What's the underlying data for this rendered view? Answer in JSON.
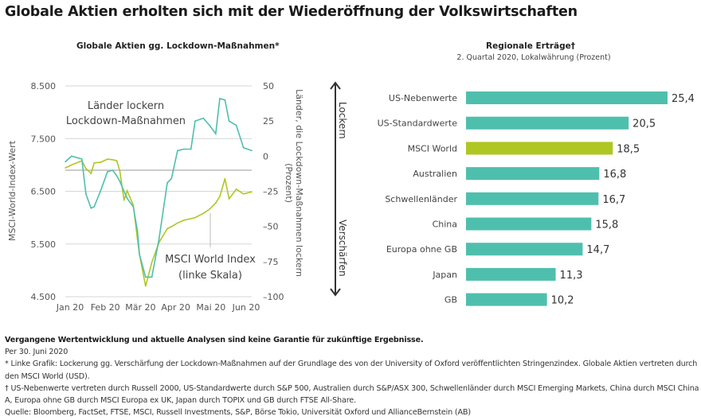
{
  "title": "Globale Aktien erholten sich mit der Wiederöffnung der Volkswirtschaften",
  "colors": {
    "teal": "#4fbfad",
    "green": "#b0c623",
    "grid": "#d6d6d6",
    "text": "#555555"
  },
  "chart_data": [
    {
      "type": "line",
      "title": "Globale Aktien gg. Lockdown-Maßnahmen*",
      "ylabel": "MSCI-World-Index-Wert",
      "y2label": "Länder, die Lockdown-Maßnahmen lockern (Prozent)",
      "ylim": [
        4500,
        8500
      ],
      "y2lim": [
        -100,
        50
      ],
      "yticks": [
        "8.500",
        "7.500",
        "6.500",
        "5.500",
        "4.500"
      ],
      "yticks_values": [
        8500,
        7500,
        6500,
        5500,
        4500
      ],
      "y2ticks": [
        50,
        25,
        0,
        -25,
        -50,
        -75,
        -100
      ],
      "y2ticks_labels": [
        "50",
        "25",
        "0",
        "–25",
        "–50",
        "–75",
        "–100"
      ],
      "xticks": [
        "Jan 20",
        "Feb 20",
        "Mär 20",
        "Apr 20",
        "Mai 20",
        "Jun 20"
      ],
      "xlim": [
        "2020-01-01",
        "2020-06-30"
      ],
      "grid": true,
      "annotations": [
        "Länder lockern",
        "Lockdown-Maßnahmen",
        "MSCI World Index",
        "(linke Skala)"
      ],
      "x": [
        "2020-01-01",
        "2020-01-07",
        "2020-01-17",
        "2020-01-21",
        "2020-01-26",
        "2020-01-29",
        "2020-02-04",
        "2020-02-11",
        "2020-02-16",
        "2020-02-20",
        "2020-02-23",
        "2020-02-27",
        "2020-03-01",
        "2020-03-07",
        "2020-03-11",
        "2020-03-13",
        "2020-03-19",
        "2020-03-25",
        "2020-04-01",
        "2020-04-09",
        "2020-04-13",
        "2020-04-19",
        "2020-04-25",
        "2020-05-02",
        "2020-05-06",
        "2020-05-14",
        "2020-05-20",
        "2020-05-26",
        "2020-05-30",
        "2020-06-04",
        "2020-06-08",
        "2020-06-15",
        "2020-06-22",
        "2020-06-30"
      ],
      "series": [
        {
          "name": "Länder lockern Lockdown-Maßnahmen",
          "axis": "right",
          "color": "#4fbfad",
          "values": [
            -4,
            0,
            -2,
            -27,
            -37,
            -36,
            -25,
            -11,
            -10,
            -14,
            -18,
            -25,
            -30,
            -36,
            -53,
            -70,
            -86,
            -86,
            -59,
            -19,
            -16,
            4,
            5,
            5,
            25,
            27,
            22,
            16,
            41,
            40,
            25,
            22,
            6,
            4
          ]
        },
        {
          "name": "MSCI World Index (linke Skala)",
          "axis": "left",
          "color": "#b0c623",
          "values": [
            6945,
            7000,
            7080,
            6930,
            6840,
            7040,
            7050,
            7110,
            7100,
            7080,
            6880,
            6330,
            6510,
            6240,
            5600,
            5300,
            4700,
            5150,
            5530,
            5790,
            5830,
            5900,
            5950,
            5980,
            6000,
            6080,
            6160,
            6280,
            6400,
            6740,
            6360,
            6540,
            6450,
            6490
          ]
        }
      ]
    },
    {
      "type": "bar",
      "orientation": "horizontal",
      "title": "Regionale Erträge†",
      "subtitle": "2. Quartal 2020, Lokalwährung (Prozent)",
      "categories": [
        "US-Nebenwerte",
        "US-Standardwerte",
        "MSCI World",
        "Australien",
        "Schwellenländer",
        "China",
        "Europa ohne GB",
        "Japan",
        "GB"
      ],
      "values": [
        25.4,
        20.5,
        18.5,
        16.8,
        16.7,
        15.8,
        14.7,
        11.3,
        10.2
      ],
      "value_labels": [
        "25,4",
        "20,5",
        "18,5",
        "16,8",
        "16,7",
        "15,8",
        "14,7",
        "11,3",
        "10,2"
      ],
      "highlight": "MSCI World",
      "arrow_labels": {
        "top": "Lockern",
        "bottom": "Verschärfen"
      }
    }
  ],
  "notes": {
    "disclaimer": "Vergangene Wertentwicklung und aktuelle Analysen sind keine Garantie für zukünftige Ergebnisse.",
    "date": "Per 30. Juni 2020",
    "footnote1": "* Linke Grafik: Lockerung gg. Verschärfung der Lockdown-Maßnahmen auf der Grundlage des von der University of Oxford veröffentlichten Stringenzindex. Globale Aktien vertreten durch den MSCI World (USD).",
    "footnote2": "† US-Nebenwerte vertreten durch Russell 2000, US-Standardwerte durch S&P 500, Australien durch S&P/ASX 300, Schwellenländer durch MSCI Emerging Markets, China durch MSCI China A, Europa ohne GB durch MSCI Europa ex UK, Japan durch TOPIX und GB durch FTSE All-Share.",
    "source": "Quelle: Bloomberg, FactSet, FTSE, MSCI, Russell Investments, S&P, Börse Tokio, Universität Oxford und AllianceBernstein (AB)"
  }
}
